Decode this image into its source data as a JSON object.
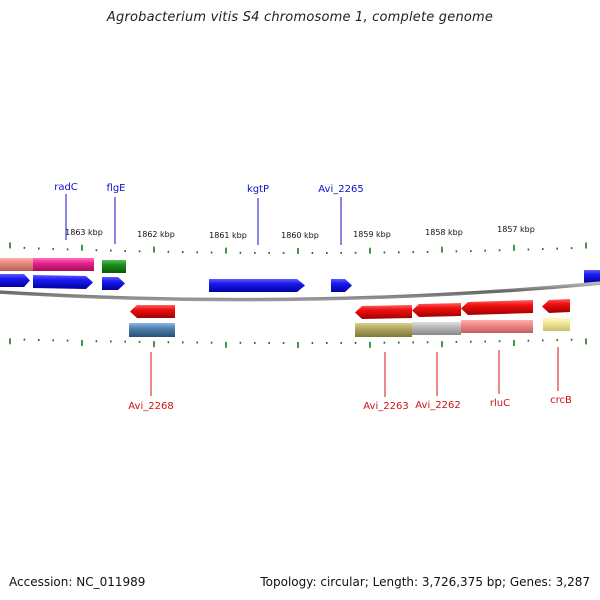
{
  "title": "Agrobacterium vitis S4 chromosome 1, complete genome",
  "footer": {
    "accession": "Accession: NC_011989",
    "summary": "Topology: circular; Length: 3,726,375 bp; Genes: 3,287"
  },
  "scale": {
    "unit": "kbp",
    "ticks": [
      {
        "kbp": 1863,
        "label": "1863 kbp"
      },
      {
        "kbp": 1862,
        "label": "1862 kbp"
      },
      {
        "kbp": 1861,
        "label": "1861 kbp"
      },
      {
        "kbp": 1860,
        "label": "1860 kbp"
      },
      {
        "kbp": 1859,
        "label": "1859 kbp"
      },
      {
        "kbp": 1858,
        "label": "1858 kbp"
      },
      {
        "kbp": 1857,
        "label": "1857 kbp"
      }
    ]
  },
  "colors": {
    "forward_cds": "#1010e0",
    "reverse_cds": "#e01010",
    "forward_label": "#1010c8",
    "reverse_label": "#d01010",
    "backbone": "#777777",
    "tick": "#1a7a1a",
    "pink_feature": "#e8208c",
    "salmon_feature": "#e88880",
    "green_feature": "#1a8a1a",
    "steelblue_feature": "#4a80b0",
    "olive_feature": "#b0a860",
    "silver_feature": "#b8b8b8",
    "lightred_feature": "#f08888",
    "paleyellow_feature": "#f0e898"
  },
  "genes_forward": [
    {
      "name": "radC",
      "label": "radC"
    },
    {
      "name": "flgE",
      "label": "flgE"
    },
    {
      "name": "kgtP",
      "label": "kgtP"
    },
    {
      "name": "Avi_2265",
      "label": "Avi_2265"
    }
  ],
  "genes_reverse": [
    {
      "name": "Avi_2268",
      "label": "Avi_2268"
    },
    {
      "name": "Avi_2263",
      "label": "Avi_2263"
    },
    {
      "name": "Avi_2262",
      "label": "Avi_2262"
    },
    {
      "name": "rluC",
      "label": "rluC"
    },
    {
      "name": "crcB",
      "label": "crcB"
    }
  ]
}
